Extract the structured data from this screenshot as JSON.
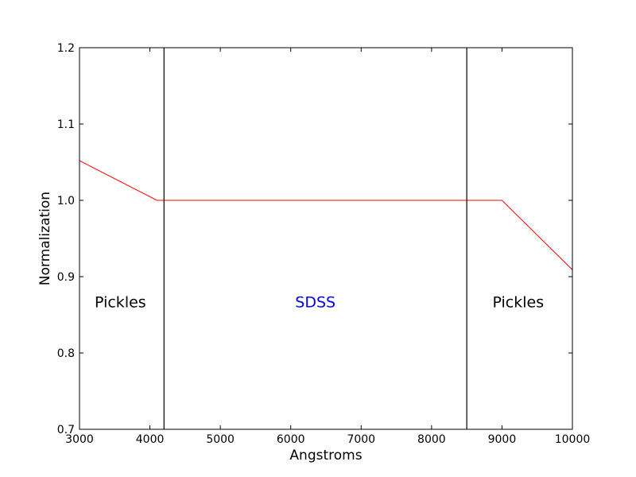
{
  "chart_data": {
    "type": "line",
    "xlabel": "Angstroms",
    "ylabel": "Normalization",
    "xlim": [
      3000,
      10000
    ],
    "ylim": [
      0.7,
      1.2
    ],
    "xticks": [
      3000,
      4000,
      5000,
      6000,
      7000,
      8000,
      9000,
      10000
    ],
    "yticks": [
      0.7,
      0.8,
      0.9,
      1.0,
      1.1,
      1.2
    ],
    "xtick_labels": [
      "3000",
      "4000",
      "5000",
      "6000",
      "7000",
      "8000",
      "9000",
      "10000"
    ],
    "ytick_labels": [
      "0.7",
      "0.8",
      "0.9",
      "1.0",
      "1.1",
      "1.2"
    ],
    "grid": false,
    "series": [
      {
        "color": "#ff0000",
        "x": [
          3000,
          4100,
          9000,
          10000
        ],
        "y": [
          1.052,
          1.0,
          1.0,
          0.909
        ]
      }
    ],
    "vlines": [
      {
        "x": 4200,
        "color": "#000000"
      },
      {
        "x": 8500,
        "color": "#000000"
      }
    ],
    "region_labels": [
      {
        "text": "Pickles",
        "x": 3580,
        "y": 0.867,
        "color": "#000000"
      },
      {
        "text": "SDSS",
        "x": 6350,
        "y": 0.867,
        "color": "#0000ff"
      },
      {
        "text": "Pickles",
        "x": 9230,
        "y": 0.867,
        "color": "#000000"
      }
    ]
  }
}
